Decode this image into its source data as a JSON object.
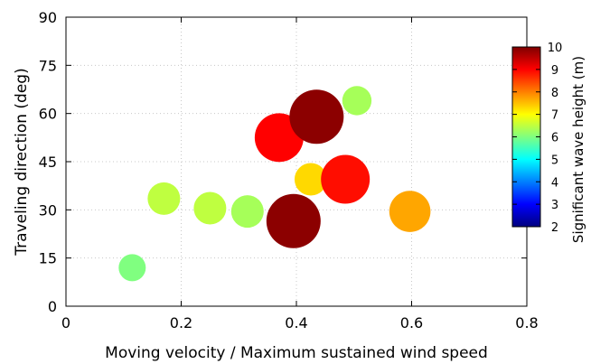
{
  "chart_data": {
    "type": "scatter",
    "title": "",
    "xlabel": "Moving velocity / Maximum sustained wind speed",
    "ylabel": "Traveling direction (deg)",
    "xlim": [
      0,
      0.8
    ],
    "ylim": [
      0,
      90
    ],
    "xticks": [
      "0",
      "0.2",
      "0.4",
      "0.6",
      "0.8"
    ],
    "yticks": [
      "0",
      "15",
      "30",
      "45",
      "60",
      "75",
      "90"
    ],
    "grid": true,
    "colorbar": {
      "label": "Significant wave height (m)",
      "range": [
        2,
        10
      ],
      "ticks": [
        "2",
        "3",
        "4",
        "5",
        "6",
        "7",
        "8",
        "9",
        "10"
      ],
      "colormap": "jet",
      "position": "right"
    },
    "points": [
      {
        "x": 0.115,
        "y": 12,
        "color_value": 6.0,
        "size": 2.5
      },
      {
        "x": 0.17,
        "y": 33.5,
        "color_value": 6.5,
        "size": 3.0
      },
      {
        "x": 0.25,
        "y": 30.5,
        "color_value": 6.5,
        "size": 3.0
      },
      {
        "x": 0.315,
        "y": 29.5,
        "color_value": 6.3,
        "size": 3.0
      },
      {
        "x": 0.37,
        "y": 52.5,
        "color_value": 9.0,
        "size": 4.5
      },
      {
        "x": 0.395,
        "y": 26.5,
        "color_value": 9.9,
        "size": 5.0
      },
      {
        "x": 0.425,
        "y": 39.5,
        "color_value": 7.3,
        "size": 3.0
      },
      {
        "x": 0.435,
        "y": 59,
        "color_value": 9.9,
        "size": 5.0
      },
      {
        "x": 0.485,
        "y": 39.5,
        "color_value": 8.9,
        "size": 4.5
      },
      {
        "x": 0.505,
        "y": 64,
        "color_value": 6.3,
        "size": 2.7
      },
      {
        "x": 0.597,
        "y": 29.5,
        "color_value": 7.7,
        "size": 3.8
      }
    ]
  }
}
